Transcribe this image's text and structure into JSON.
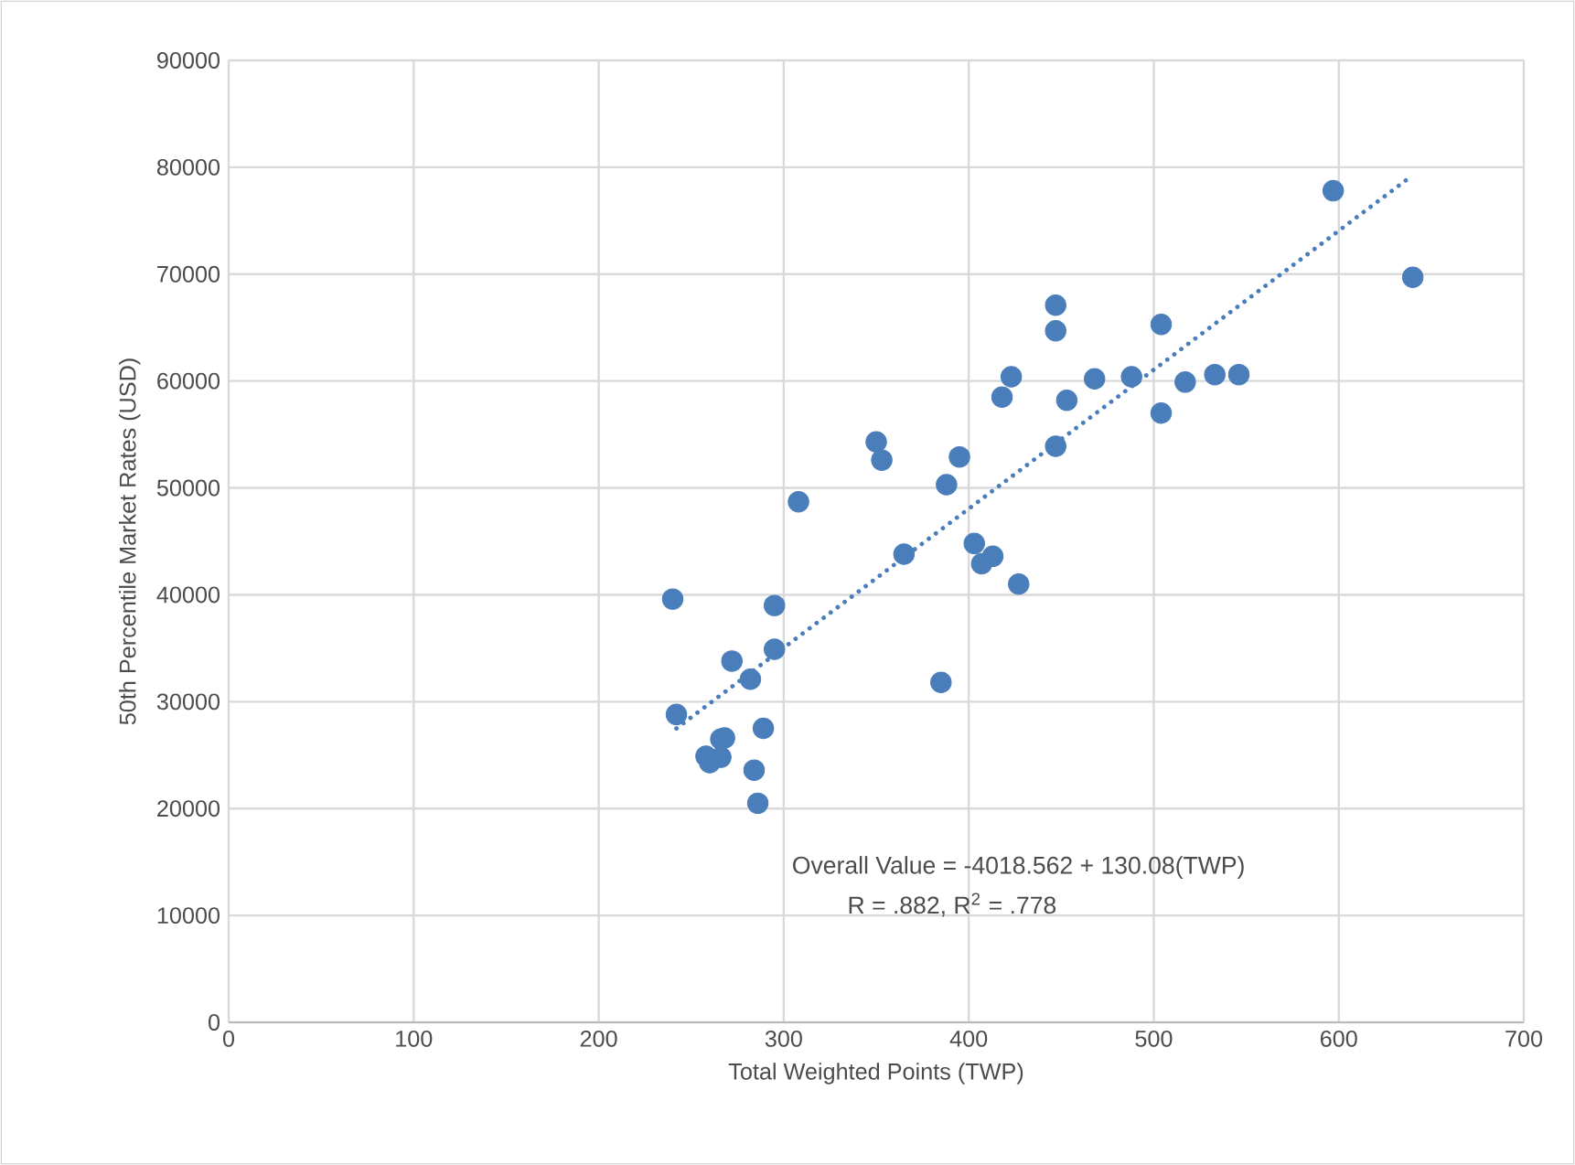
{
  "chart_data": {
    "type": "scatter",
    "xlabel": "Total Weighted Points (TWP)",
    "ylabel": "50th Percentile Market Rates (USD)",
    "series": [
      {
        "color": "#4a7ebb",
        "marker": "circle",
        "x": [
          308,
          240,
          295,
          295,
          272,
          282,
          242,
          289,
          268,
          266,
          258,
          260,
          266,
          284,
          286,
          597,
          640,
          447,
          447,
          504,
          423,
          418,
          453,
          468,
          488,
          517,
          533,
          546,
          504,
          447,
          350,
          353,
          395,
          388,
          365,
          403,
          407,
          413,
          427,
          385
        ],
        "values": [
          48700,
          39600,
          39000,
          34900,
          33800,
          32100,
          28800,
          27500,
          26600,
          26500,
          24900,
          24300,
          24800,
          23600,
          20500,
          77800,
          69700,
          67100,
          64700,
          65300,
          60400,
          58500,
          58200,
          60200,
          60400,
          59900,
          60600,
          60600,
          57000,
          53900,
          54300,
          52600,
          52900,
          50300,
          43800,
          44800,
          42900,
          43600,
          41000,
          31800
        ]
      },
      {
        "type": "line",
        "color": "#4a7ebb",
        "line_style": "dotted",
        "x": [
          242,
          638
        ],
        "values": [
          27500,
          79000
        ]
      }
    ],
    "annotations": [
      "Overall Value  = -4018.562 + 130.08(TWP)",
      "R = .882, R$^{2}$ = .778"
    ],
    "xlim": [
      0,
      700
    ],
    "xticks": [
      0,
      100,
      200,
      300,
      400,
      500,
      600,
      700
    ],
    "ylim": [
      0,
      90000
    ],
    "yticks": [
      0,
      10000,
      20000,
      30000,
      40000,
      50000,
      60000,
      70000,
      80000,
      90000
    ],
    "grid": true
  }
}
